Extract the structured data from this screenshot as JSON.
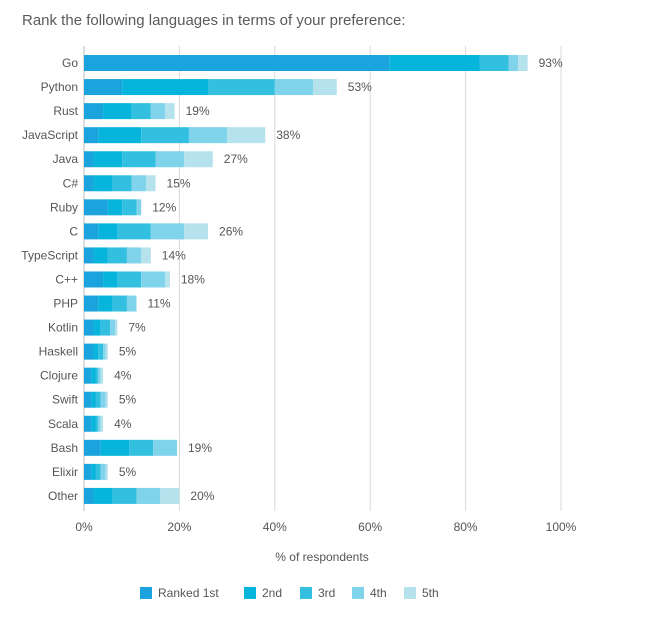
{
  "question": "Rank the following languages in terms of your preference:",
  "chart_data": {
    "type": "bar",
    "orientation": "horizontal",
    "stacked": true,
    "categories": [
      "Go",
      "Python",
      "Rust",
      "JavaScript",
      "Java",
      "C#",
      "Ruby",
      "C",
      "TypeScript",
      "C++",
      "PHP",
      "Kotlin",
      "Haskell",
      "Clojure",
      "Swift",
      "Scala",
      "Bash",
      "Elixir",
      "Other"
    ],
    "series": [
      {
        "name": "Ranked 1st",
        "color": "#1aa3dc",
        "values": [
          64,
          8,
          4,
          3,
          2,
          2,
          5,
          3,
          2,
          4,
          3,
          2,
          2,
          1.5,
          1.5,
          1.5,
          3.5,
          1.5,
          2
        ]
      },
      {
        "name": "2nd",
        "color": "#06b4dc",
        "values": [
          19,
          18,
          6,
          9,
          6,
          4,
          3,
          4,
          3,
          3,
          3,
          1.5,
          1,
          1,
          1,
          1,
          6,
          1,
          4
        ]
      },
      {
        "name": "3rd",
        "color": "#33c0e0",
        "values": [
          6,
          14,
          4,
          10,
          7,
          4,
          3,
          7,
          4,
          5,
          3,
          2,
          1,
          0.5,
          1,
          0.5,
          5,
          1,
          5
        ]
      },
      {
        "name": "4th",
        "color": "#7fd3ea",
        "values": [
          2,
          8,
          3,
          8,
          6,
          3,
          1,
          7,
          3,
          5,
          2,
          1,
          0.5,
          0.5,
          1,
          0.5,
          5,
          1,
          5
        ]
      },
      {
        "name": "5th",
        "color": "#b5e2ec",
        "values": [
          2,
          5,
          2,
          8,
          6,
          2,
          0,
          5,
          2,
          1,
          0,
          0.5,
          0.5,
          0.5,
          0.5,
          0.5,
          0,
          0.5,
          4
        ]
      }
    ],
    "totals": [
      "93%",
      "53%",
      "19%",
      "38%",
      "27%",
      "15%",
      "12%",
      "26%",
      "14%",
      "18%",
      "11%",
      "7%",
      "5%",
      "4%",
      "5%",
      "4%",
      "19%",
      "5%",
      "20%"
    ],
    "xlabel": "% of respondents",
    "xlim": [
      0,
      100
    ],
    "xticks": [
      "0%",
      "20%",
      "40%",
      "60%",
      "80%",
      "100%"
    ],
    "grid": true,
    "legend_position": "bottom",
    "colors": {
      "grid": "#d9d9d9",
      "axis_text": "#555555"
    }
  }
}
